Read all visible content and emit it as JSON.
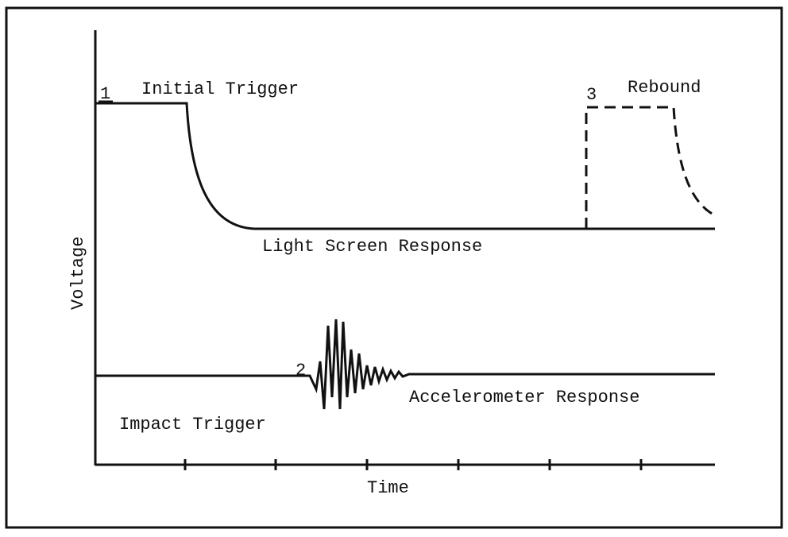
{
  "axes": {
    "y_label": "Voltage",
    "x_label": "Time"
  },
  "annotations": {
    "marker_1": "1",
    "initial_trigger": "Initial Trigger",
    "marker_3": "3",
    "rebound": "Rebound",
    "light_screen": "Light Screen Response",
    "marker_2": "2",
    "accelerometer": "Accelerometer Response",
    "impact_trigger": "Impact Trigger"
  }
}
